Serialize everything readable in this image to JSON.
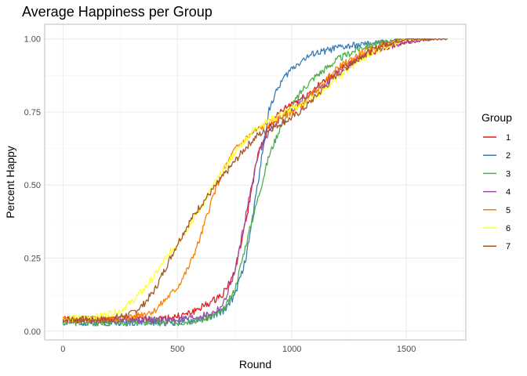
{
  "chart_data": {
    "type": "line",
    "title": "Average Happiness per Group",
    "xlabel": "Round",
    "ylabel": "Percent Happy",
    "xlim": [
      -80,
      1760
    ],
    "ylim": [
      -0.03,
      1.05
    ],
    "xticks": [
      0,
      500,
      1000,
      1500
    ],
    "xtick_labels": [
      "0",
      "500",
      "1000",
      "1500"
    ],
    "yticks": [
      0,
      0.25,
      0.5,
      0.75,
      1.0
    ],
    "ytick_labels": [
      "0.00",
      "0.25",
      "0.50",
      "0.75",
      "1.00"
    ],
    "grid": true,
    "legend": {
      "title": "Group",
      "position": "right"
    },
    "series": [
      {
        "name": "1",
        "color": "#E41A1C",
        "end_round": 1620,
        "x": [
          0,
          200,
          400,
          500,
          550,
          600,
          650,
          700,
          750,
          800,
          850,
          900,
          950,
          1000,
          1050,
          1100,
          1150,
          1200,
          1300,
          1400,
          1500,
          1620
        ],
        "y": [
          0.04,
          0.04,
          0.04,
          0.05,
          0.06,
          0.08,
          0.1,
          0.13,
          0.2,
          0.38,
          0.6,
          0.7,
          0.75,
          0.78,
          0.8,
          0.83,
          0.86,
          0.89,
          0.94,
          0.97,
          0.99,
          1.0
        ]
      },
      {
        "name": "2",
        "color": "#377EB8",
        "end_round": 1620,
        "x": [
          0,
          200,
          400,
          500,
          600,
          650,
          700,
          750,
          800,
          850,
          900,
          950,
          1000,
          1050,
          1100,
          1200,
          1300,
          1400,
          1500,
          1620
        ],
        "y": [
          0.03,
          0.03,
          0.03,
          0.03,
          0.04,
          0.05,
          0.07,
          0.12,
          0.25,
          0.5,
          0.76,
          0.85,
          0.9,
          0.93,
          0.95,
          0.97,
          0.98,
          0.99,
          1.0,
          1.0
        ]
      },
      {
        "name": "3",
        "color": "#4DAF4A",
        "end_round": 1620,
        "x": [
          0,
          200,
          400,
          500,
          600,
          650,
          700,
          750,
          800,
          850,
          900,
          950,
          1000,
          1050,
          1100,
          1150,
          1200,
          1250,
          1300,
          1400,
          1500,
          1620
        ],
        "y": [
          0.03,
          0.03,
          0.03,
          0.03,
          0.04,
          0.05,
          0.07,
          0.14,
          0.3,
          0.45,
          0.6,
          0.7,
          0.77,
          0.83,
          0.87,
          0.9,
          0.93,
          0.95,
          0.97,
          0.99,
          1.0,
          1.0
        ]
      },
      {
        "name": "4",
        "color": "#984EA3",
        "end_round": 1620,
        "x": [
          0,
          200,
          400,
          500,
          600,
          650,
          700,
          750,
          800,
          850,
          900,
          950,
          1000,
          1050,
          1100,
          1150,
          1200,
          1250,
          1300,
          1400,
          1500,
          1620
        ],
        "y": [
          0.04,
          0.04,
          0.04,
          0.04,
          0.05,
          0.06,
          0.09,
          0.2,
          0.4,
          0.6,
          0.68,
          0.73,
          0.76,
          0.79,
          0.82,
          0.85,
          0.88,
          0.91,
          0.94,
          0.97,
          0.99,
          1.0
        ]
      },
      {
        "name": "5",
        "color": "#FF7F00",
        "end_round": 1620,
        "x": [
          0,
          200,
          300,
          400,
          500,
          550,
          600,
          650,
          700,
          750,
          800,
          850,
          900,
          950,
          1000,
          1050,
          1100,
          1150,
          1200,
          1300,
          1400,
          1500,
          1620
        ],
        "y": [
          0.04,
          0.04,
          0.05,
          0.07,
          0.15,
          0.22,
          0.32,
          0.45,
          0.55,
          0.62,
          0.66,
          0.69,
          0.71,
          0.73,
          0.75,
          0.78,
          0.82,
          0.86,
          0.9,
          0.95,
          0.98,
          1.0,
          1.0
        ]
      },
      {
        "name": "6",
        "color": "#FFFF33",
        "end_round": 1620,
        "x": [
          0,
          150,
          250,
          300,
          350,
          400,
          450,
          500,
          550,
          600,
          650,
          700,
          750,
          800,
          850,
          900,
          950,
          1000,
          1050,
          1100,
          1150,
          1200,
          1300,
          1400,
          1500,
          1620
        ],
        "y": [
          0.04,
          0.05,
          0.07,
          0.1,
          0.14,
          0.19,
          0.25,
          0.3,
          0.36,
          0.42,
          0.49,
          0.55,
          0.61,
          0.66,
          0.7,
          0.72,
          0.74,
          0.76,
          0.78,
          0.8,
          0.83,
          0.87,
          0.93,
          0.97,
          1.0,
          1.0
        ]
      },
      {
        "name": "7",
        "color": "#A65628",
        "end_round": 1680,
        "x": [
          0,
          200,
          300,
          350,
          400,
          450,
          500,
          550,
          600,
          650,
          700,
          750,
          800,
          850,
          900,
          950,
          1000,
          1050,
          1100,
          1150,
          1200,
          1300,
          1400,
          1500,
          1600,
          1680
        ],
        "y": [
          0.04,
          0.04,
          0.06,
          0.09,
          0.14,
          0.22,
          0.3,
          0.37,
          0.43,
          0.48,
          0.53,
          0.58,
          0.63,
          0.67,
          0.69,
          0.71,
          0.73,
          0.76,
          0.8,
          0.84,
          0.88,
          0.94,
          0.98,
          1.0,
          1.0,
          1.0
        ]
      }
    ]
  }
}
